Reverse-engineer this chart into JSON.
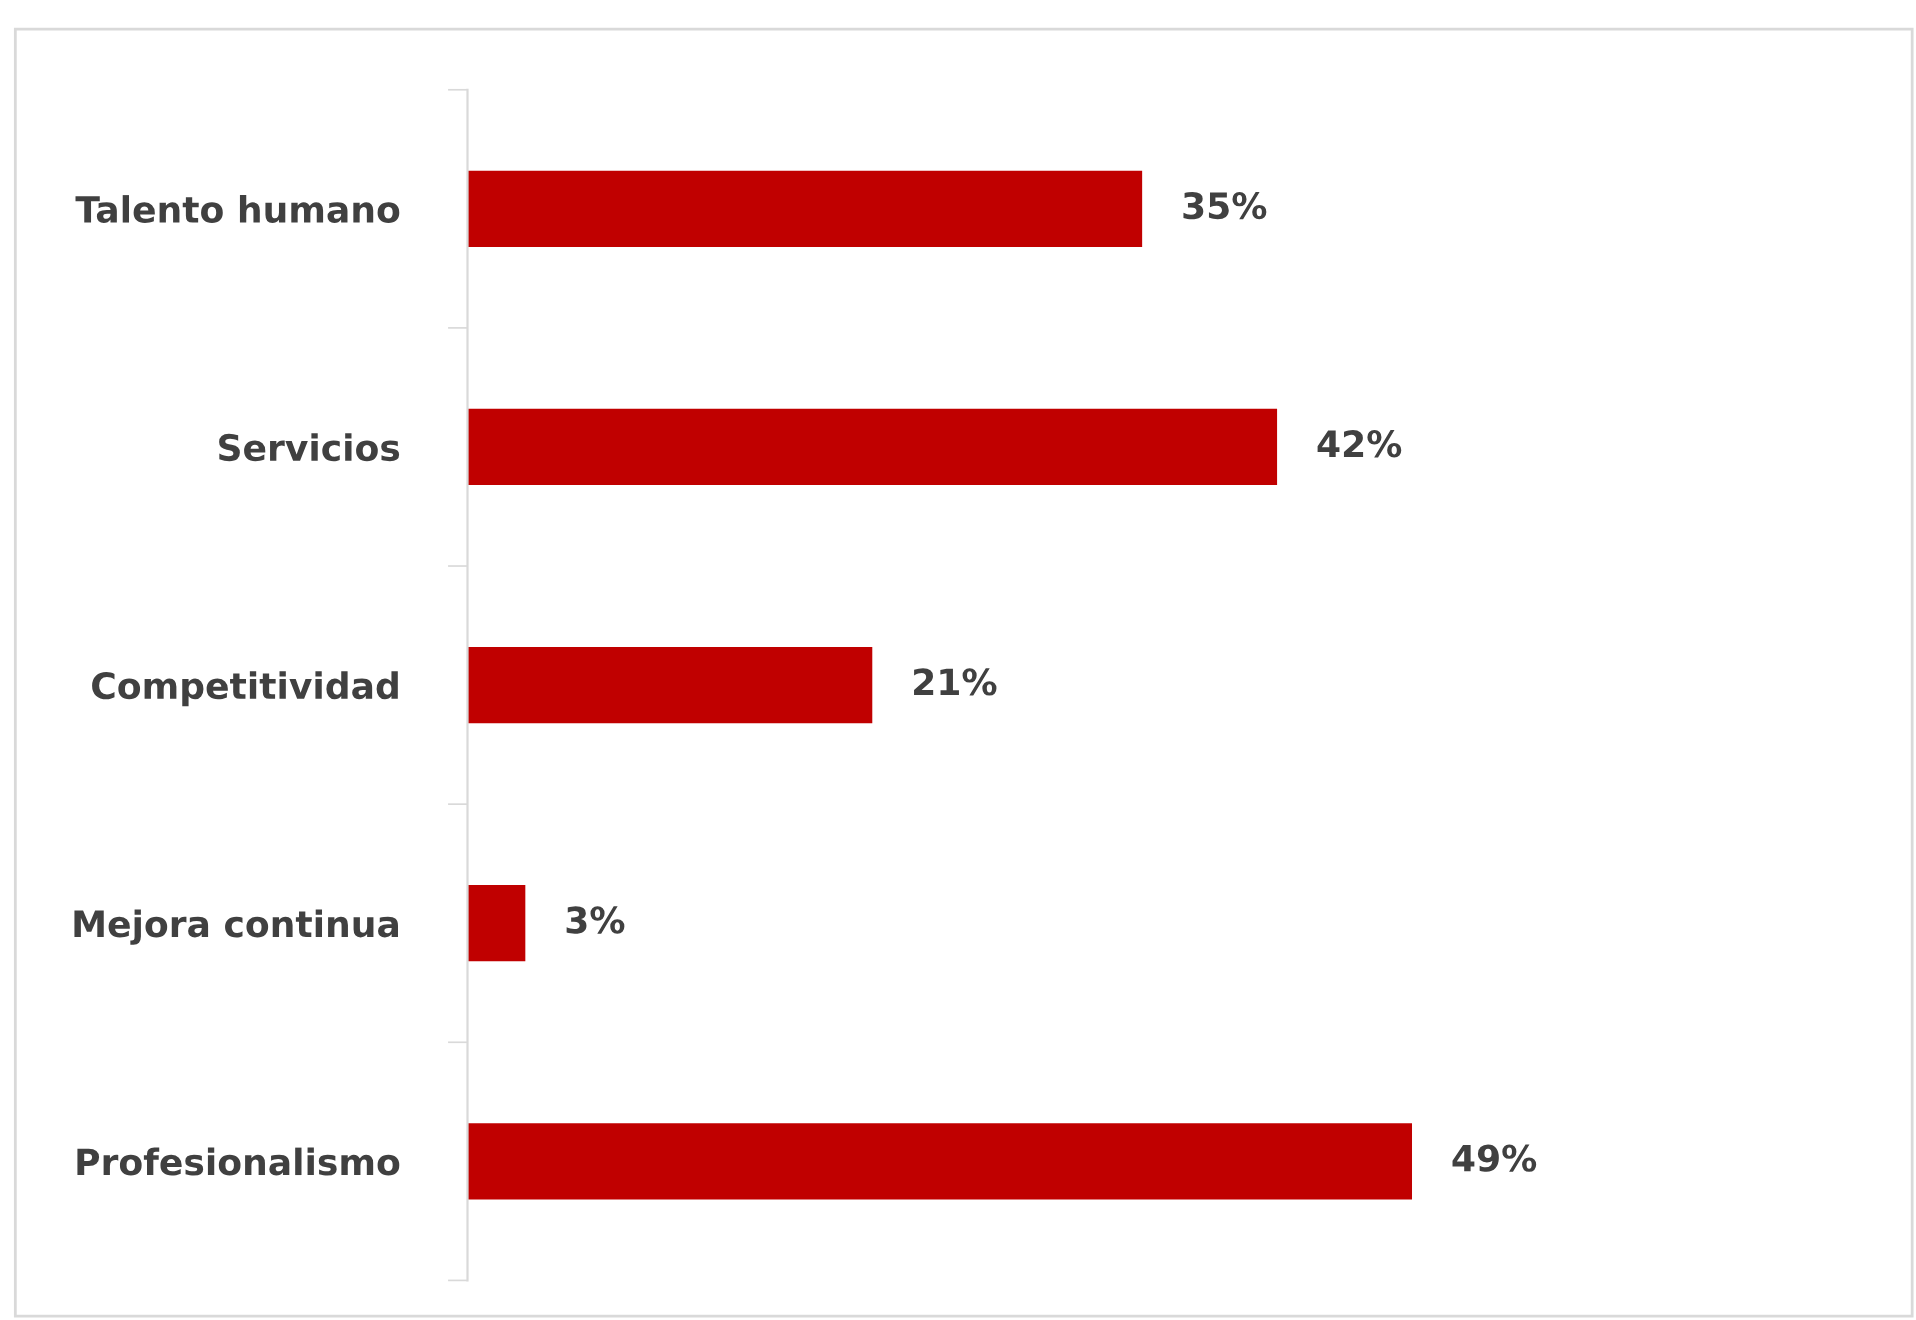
{
  "chart_data": {
    "type": "bar",
    "orientation": "horizontal",
    "categories": [
      "Talento humano",
      "Servicios",
      "Competitividad",
      "Mejora continua",
      "Profesionalismo"
    ],
    "values": [
      35,
      42,
      21,
      3,
      49
    ],
    "value_labels": [
      "35%",
      "42%",
      "21%",
      "3%",
      "49%"
    ],
    "color": "#c00000",
    "grid": false,
    "legend": false,
    "tick_labels": "y"
  }
}
